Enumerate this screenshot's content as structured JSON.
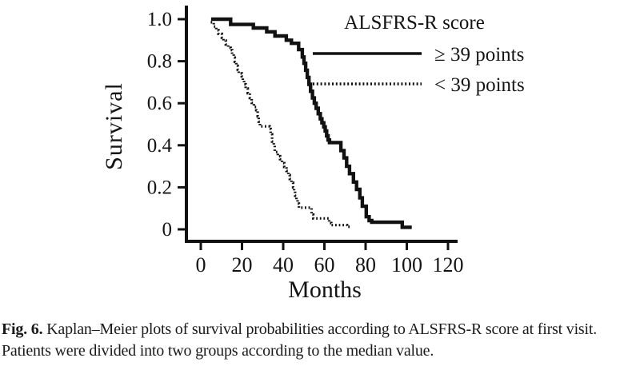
{
  "figure": {
    "caption_label": "Fig. 6.",
    "caption_text": " Kaplan–Meier plots of survival probabilities according to ALSFRS-R score at first visit. Patients were divided into two groups according to the median value."
  },
  "colors": {
    "curve": "#111111",
    "axis": "#111111",
    "text": "#141414",
    "background": "#ffffff"
  },
  "chart_data": {
    "type": "line",
    "subtype": "kaplan-meier-step",
    "title": "",
    "xlabel": "Months",
    "ylabel": "Survival",
    "xlim": [
      0,
      120
    ],
    "ylim": [
      0,
      1.0
    ],
    "grid": false,
    "legend_position": "top-right-inside",
    "x_tick_values": [
      0,
      20,
      40,
      60,
      80,
      100,
      120
    ],
    "x_tick_labels": [
      "0",
      "20",
      "40",
      "60",
      "80",
      "100",
      "120"
    ],
    "y_tick_values": [
      1.0,
      0.8,
      0.6,
      0.4,
      0.2,
      0
    ],
    "y_tick_labels": [
      "1.0",
      "0.8",
      "0.6",
      "0.4",
      "0.2",
      "0"
    ],
    "legend": {
      "title": "ALSFRS-R score",
      "entries": [
        {
          "label": "≥ 39 points",
          "style": "solid"
        },
        {
          "label": "< 39 points",
          "style": "dotted"
        }
      ]
    },
    "series": [
      {
        "name": "≥ 39 points",
        "style": "solid",
        "points": [
          [
            5,
            1.0
          ],
          [
            14.5,
            0.975
          ],
          [
            25.5,
            0.958
          ],
          [
            32,
            0.94
          ],
          [
            36,
            0.92
          ],
          [
            41.5,
            0.9
          ],
          [
            44,
            0.885
          ],
          [
            47.5,
            0.855
          ],
          [
            49.3,
            0.82
          ],
          [
            50.1,
            0.79
          ],
          [
            50.9,
            0.757
          ],
          [
            51.7,
            0.723
          ],
          [
            52.5,
            0.69
          ],
          [
            53.3,
            0.657
          ],
          [
            54.2,
            0.625
          ],
          [
            55.1,
            0.6
          ],
          [
            56,
            0.576
          ],
          [
            57,
            0.55
          ],
          [
            58,
            0.526
          ],
          [
            58.8,
            0.507
          ],
          [
            59.7,
            0.488
          ],
          [
            60.4,
            0.468
          ],
          [
            61.1,
            0.445
          ],
          [
            61.8,
            0.425
          ],
          [
            62.5,
            0.413
          ],
          [
            68,
            0.375
          ],
          [
            69.5,
            0.34
          ],
          [
            70.8,
            0.3
          ],
          [
            72.2,
            0.265
          ],
          [
            74.1,
            0.225
          ],
          [
            75.6,
            0.19
          ],
          [
            77.2,
            0.15
          ],
          [
            78.4,
            0.11
          ],
          [
            80.3,
            0.06
          ],
          [
            81.7,
            0.042
          ],
          [
            83,
            0.034
          ],
          [
            97.8,
            0.01
          ],
          [
            102.4,
            0.01
          ]
        ]
      },
      {
        "name": "< 39 points",
        "style": "dotted",
        "points": [
          [
            4.8,
            0.985
          ],
          [
            6.3,
            0.965
          ],
          [
            7.5,
            0.947
          ],
          [
            8.6,
            0.93
          ],
          [
            10.2,
            0.912
          ],
          [
            11,
            0.898
          ],
          [
            12.1,
            0.88
          ],
          [
            13.3,
            0.864
          ],
          [
            14.5,
            0.853
          ],
          [
            15.2,
            0.835
          ],
          [
            16,
            0.817
          ],
          [
            16.5,
            0.797
          ],
          [
            17.2,
            0.778
          ],
          [
            17.9,
            0.76
          ],
          [
            18.4,
            0.742
          ],
          [
            19.9,
            0.728
          ],
          [
            20.4,
            0.71
          ],
          [
            21,
            0.69
          ],
          [
            21.8,
            0.67
          ],
          [
            22.8,
            0.648
          ],
          [
            23.8,
            0.625
          ],
          [
            24.7,
            0.602
          ],
          [
            25.8,
            0.582
          ],
          [
            26.9,
            0.567
          ],
          [
            27.6,
            0.538
          ],
          [
            28.1,
            0.512
          ],
          [
            28.7,
            0.49
          ],
          [
            33.4,
            0.478
          ],
          [
            33.9,
            0.452
          ],
          [
            34.6,
            0.418
          ],
          [
            35.4,
            0.403
          ],
          [
            35.9,
            0.368
          ],
          [
            37.4,
            0.348
          ],
          [
            38.5,
            0.334
          ],
          [
            39.4,
            0.315
          ],
          [
            40.5,
            0.297
          ],
          [
            41.6,
            0.278
          ],
          [
            42.5,
            0.258
          ],
          [
            43.2,
            0.24
          ],
          [
            44,
            0.222
          ],
          [
            44.8,
            0.2
          ],
          [
            45.3,
            0.18
          ],
          [
            45.8,
            0.16
          ],
          [
            46.4,
            0.14
          ],
          [
            47,
            0.122
          ],
          [
            47.6,
            0.103
          ],
          [
            53.8,
            0.07
          ],
          [
            54.6,
            0.052
          ],
          [
            62.3,
            0.03
          ],
          [
            63.3,
            0.02
          ],
          [
            71,
            0.012
          ],
          [
            73.2,
            0.012
          ]
        ]
      }
    ]
  }
}
